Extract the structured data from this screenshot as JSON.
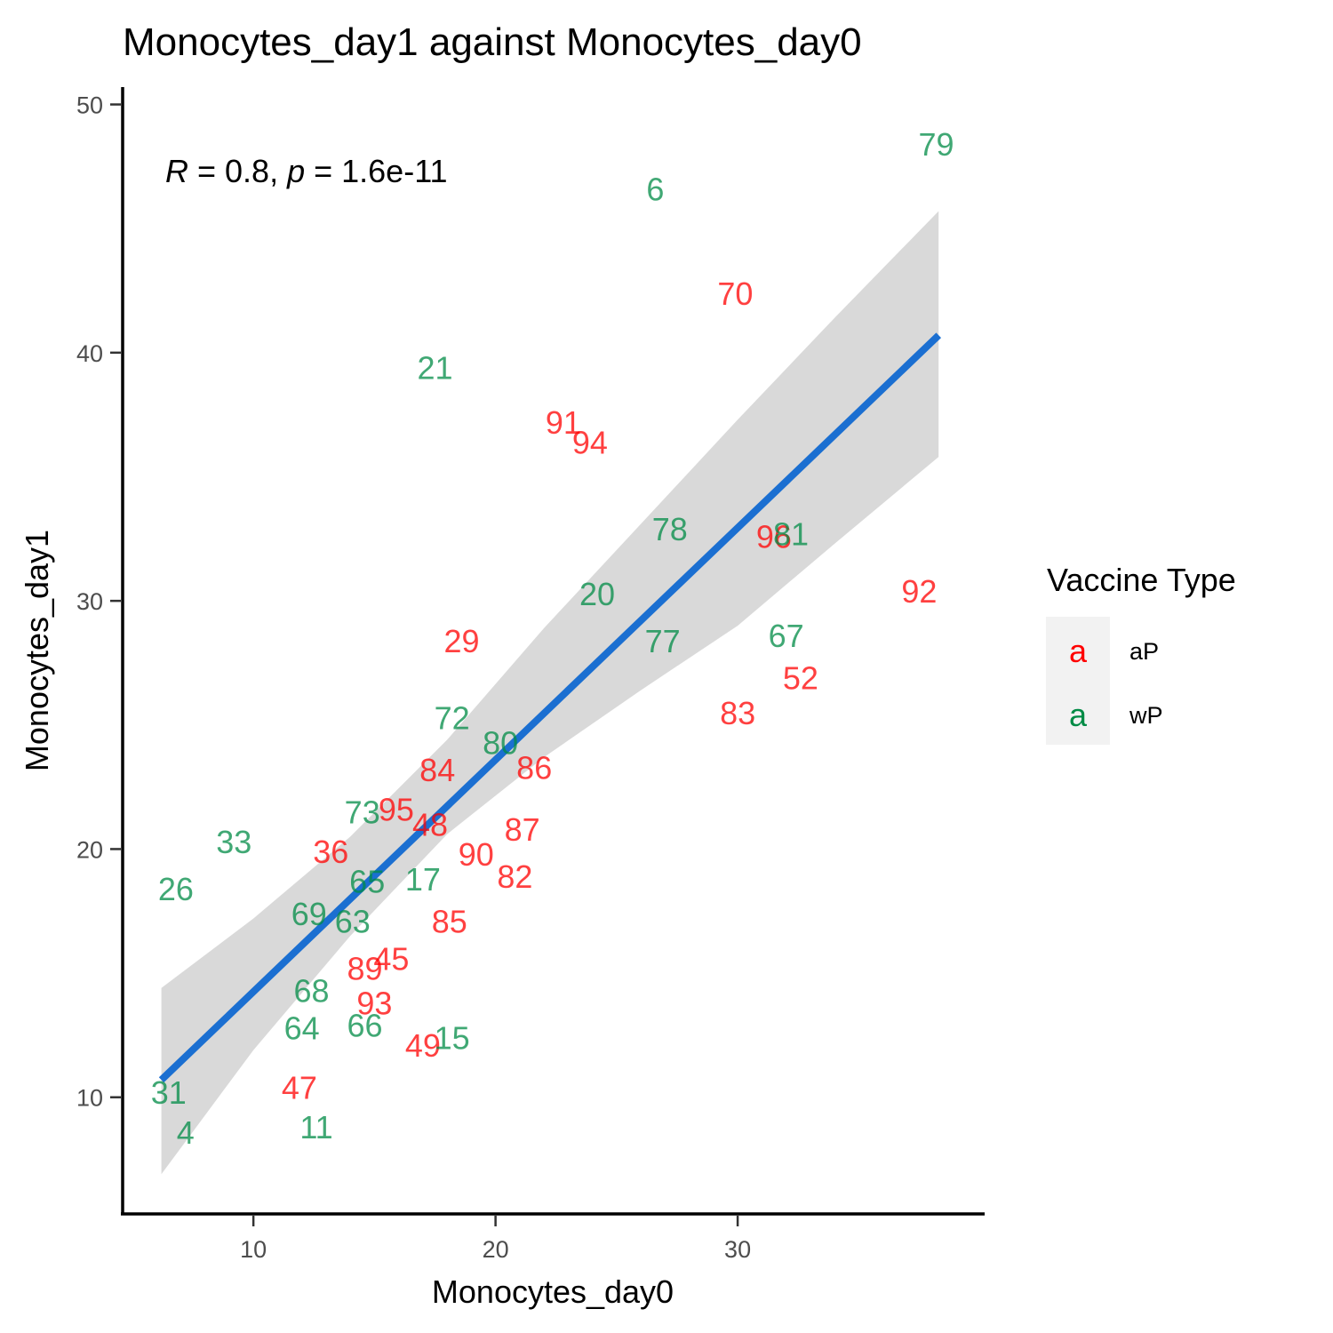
{
  "chart_data": {
    "type": "scatter",
    "title": "Monocytes_day1 against Monocytes_day0",
    "xlabel": "Monocytes_day0",
    "ylabel": "Monocytes_day1",
    "xlim": [
      4.6,
      40.2
    ],
    "ylim": [
      5.3,
      50.7
    ],
    "xticks": [
      10,
      20,
      30
    ],
    "yticks": [
      10,
      20,
      30,
      40,
      50
    ],
    "annotation": {
      "r_label": "R",
      "r_value": " = 0.8, ",
      "p_label": "p",
      "p_value": " = 1.6e-11"
    },
    "legend": {
      "title": "Vaccine Type",
      "position": "right",
      "key_glyph": "a",
      "entries": [
        {
          "name": "aP",
          "color": "#ff0000"
        },
        {
          "name": "wP",
          "color": "#008b45"
        }
      ]
    },
    "fit": {
      "color": "#1b6fd1",
      "ribbon_color": "#d9d9d9",
      "x": [
        6.2,
        38.3
      ],
      "y": [
        10.7,
        40.7
      ],
      "band_x": [
        6.2,
        10,
        14,
        18,
        22,
        26,
        30,
        34,
        38.3
      ],
      "band_lower": [
        6.9,
        11.9,
        16.5,
        20.6,
        23.7,
        26.4,
        29.0,
        32.3,
        35.8
      ],
      "band_upper": [
        14.4,
        17.2,
        20.5,
        24.4,
        28.9,
        33.1,
        37.3,
        41.4,
        45.7
      ]
    },
    "series": [
      {
        "name": "aP",
        "color": "#ff0000",
        "points": [
          {
            "label": "70",
            "x": 29.9,
            "y": 42.4
          },
          {
            "label": "91",
            "x": 22.8,
            "y": 37.2
          },
          {
            "label": "94",
            "x": 23.9,
            "y": 36.4
          },
          {
            "label": "96",
            "x": 31.5,
            "y": 32.6
          },
          {
            "label": "92",
            "x": 37.5,
            "y": 30.4
          },
          {
            "label": "29",
            "x": 18.6,
            "y": 28.4
          },
          {
            "label": "52",
            "x": 32.6,
            "y": 26.9
          },
          {
            "label": "83",
            "x": 30.0,
            "y": 25.5
          },
          {
            "label": "84",
            "x": 17.6,
            "y": 23.2
          },
          {
            "label": "86",
            "x": 21.6,
            "y": 23.3
          },
          {
            "label": "95",
            "x": 15.9,
            "y": 21.6
          },
          {
            "label": "48",
            "x": 17.3,
            "y": 21.0
          },
          {
            "label": "87",
            "x": 21.1,
            "y": 20.8
          },
          {
            "label": "36",
            "x": 13.2,
            "y": 19.9
          },
          {
            "label": "90",
            "x": 19.2,
            "y": 19.8
          },
          {
            "label": "82",
            "x": 20.8,
            "y": 18.9
          },
          {
            "label": "85",
            "x": 18.1,
            "y": 17.1
          },
          {
            "label": "45",
            "x": 15.7,
            "y": 15.6
          },
          {
            "label": "89",
            "x": 14.6,
            "y": 15.2
          },
          {
            "label": "93",
            "x": 15.0,
            "y": 13.8
          },
          {
            "label": "49",
            "x": 17.0,
            "y": 12.1
          },
          {
            "label": "47",
            "x": 11.9,
            "y": 10.4
          }
        ]
      },
      {
        "name": "wP",
        "color": "#008b45",
        "points": [
          {
            "label": "79",
            "x": 38.2,
            "y": 48.4
          },
          {
            "label": "6",
            "x": 26.6,
            "y": 46.6
          },
          {
            "label": "21",
            "x": 17.5,
            "y": 39.4
          },
          {
            "label": "78",
            "x": 27.2,
            "y": 32.9
          },
          {
            "label": "81",
            "x": 32.2,
            "y": 32.7
          },
          {
            "label": "20",
            "x": 24.2,
            "y": 30.3
          },
          {
            "label": "67",
            "x": 32.0,
            "y": 28.6
          },
          {
            "label": "77",
            "x": 26.9,
            "y": 28.4
          },
          {
            "label": "72",
            "x": 18.2,
            "y": 25.3
          },
          {
            "label": "80",
            "x": 20.2,
            "y": 24.3
          },
          {
            "label": "73",
            "x": 14.5,
            "y": 21.5
          },
          {
            "label": "33",
            "x": 9.2,
            "y": 20.3
          },
          {
            "label": "65",
            "x": 14.7,
            "y": 18.7
          },
          {
            "label": "17",
            "x": 17.0,
            "y": 18.8
          },
          {
            "label": "26",
            "x": 6.8,
            "y": 18.4
          },
          {
            "label": "69",
            "x": 12.3,
            "y": 17.4
          },
          {
            "label": "63",
            "x": 14.1,
            "y": 17.1
          },
          {
            "label": "68",
            "x": 12.4,
            "y": 14.3
          },
          {
            "label": "64",
            "x": 12.0,
            "y": 12.8
          },
          {
            "label": "66",
            "x": 14.6,
            "y": 12.9
          },
          {
            "label": "15",
            "x": 18.2,
            "y": 12.4
          },
          {
            "label": "31",
            "x": 6.5,
            "y": 10.2
          },
          {
            "label": "4",
            "x": 7.2,
            "y": 8.6
          },
          {
            "label": "11",
            "x": 12.6,
            "y": 8.8
          }
        ]
      }
    ]
  }
}
